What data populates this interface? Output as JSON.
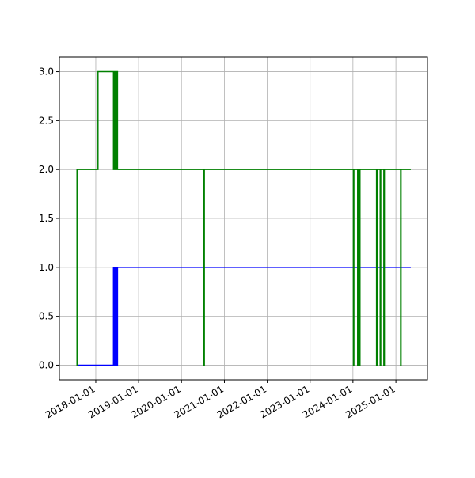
{
  "chart_data": {
    "type": "step",
    "x": [
      "2017-07-20",
      "2017-07-25",
      "2018-01-20",
      "2018-06-01",
      "2018-06-05",
      "2018-06-10",
      "2018-06-15",
      "2018-06-20",
      "2018-06-25",
      "2018-07-05",
      "2020-07-10",
      "2020-07-14",
      "2024-01-05",
      "2024-01-09",
      "2024-02-10",
      "2024-02-14",
      "2024-02-25",
      "2024-03-01",
      "2024-07-20",
      "2024-07-25",
      "2024-08-20",
      "2024-08-25",
      "2024-09-20",
      "2024-09-25",
      "2025-02-10",
      "2025-02-14",
      "2025-05-08"
    ],
    "series": [
      {
        "color": "#0000ff",
        "values": [
          0,
          0,
          0,
          1,
          0,
          1,
          0,
          1,
          0,
          1,
          1,
          1,
          1,
          1,
          1,
          1,
          1,
          1,
          1,
          1,
          1,
          1,
          1,
          1,
          1,
          1,
          1
        ]
      },
      {
        "color": "#008000",
        "values": [
          0,
          2,
          3,
          2,
          3,
          2,
          3,
          2,
          3,
          2,
          0,
          2,
          0,
          2,
          0,
          2,
          0,
          2,
          0,
          2,
          0,
          2,
          0,
          2,
          0,
          2,
          2
        ]
      }
    ],
    "xlim": [
      "2017-02-25",
      "2025-09-27"
    ],
    "xticks": [
      "2018-01-01",
      "2019-01-01",
      "2020-01-01",
      "2021-01-01",
      "2022-01-01",
      "2023-01-01",
      "2024-01-01",
      "2025-01-01"
    ],
    "ylim": [
      -0.15,
      3.15
    ],
    "yticks": [
      {
        "value": 0,
        "label": "0.0"
      },
      {
        "value": 0.5,
        "label": "0.5"
      },
      {
        "value": 1,
        "label": "1.0"
      },
      {
        "value": 1.5,
        "label": "1.5"
      },
      {
        "value": 2,
        "label": "2.0"
      },
      {
        "value": 2.5,
        "label": "2.5"
      },
      {
        "value": 3,
        "label": "3.0"
      }
    ],
    "grid": true
  }
}
